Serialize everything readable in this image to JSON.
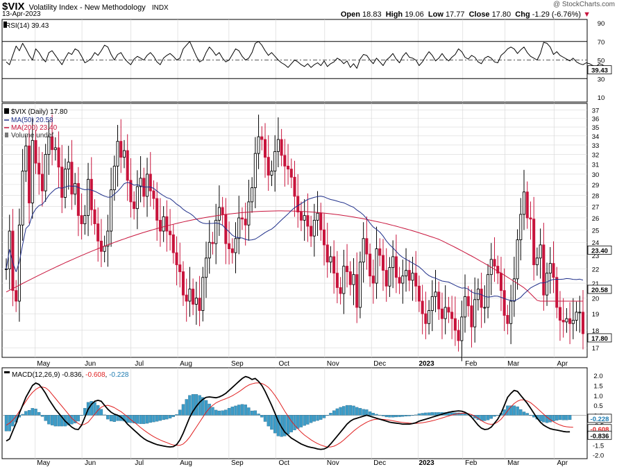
{
  "header": {
    "symbol": "$VIX",
    "name": "Volatility Index - New Methodology",
    "exchange": "INDX",
    "date": "13-Apr-2023",
    "watermark": "@ StockCharts.com",
    "open_label": "Open",
    "open": "18.83",
    "high_label": "High",
    "high": "19.06",
    "low_label": "Low",
    "low": "17.77",
    "close_label": "Close",
    "close": "17.80",
    "chg_label": "Chg",
    "chg": "-1.29 (-6.76%)",
    "chg_arrow": "down"
  },
  "colors": {
    "up": "#000000",
    "down": "#c8143c",
    "ma50": "#1f2f8a",
    "ma200": "#c8143c",
    "macd": "#000000",
    "signal": "#e02020",
    "hist": "#3c9cc8",
    "grid": "#d8d8d8"
  },
  "months": [
    "May",
    "Jun",
    "Jul",
    "Aug",
    "Sep",
    "Oct",
    "Nov",
    "Dec",
    "2023",
    "Feb",
    "Mar",
    "Apr"
  ],
  "chart_data": [
    {
      "type": "line",
      "panel": "RSI",
      "title": "RSI(14) 39.43",
      "last_value": "39.43",
      "levels": [
        70,
        30
      ],
      "dash_level": 50,
      "y_ticks": [
        "90",
        "70",
        "50",
        "30",
        "10"
      ],
      "ylim": [
        10,
        90
      ],
      "values": [
        48,
        45,
        55,
        65,
        60,
        68,
        62,
        55,
        50,
        62,
        58,
        52,
        48,
        58,
        60,
        55,
        50,
        45,
        52,
        58,
        56,
        62,
        60,
        54,
        47,
        49,
        52,
        58,
        55,
        60,
        66,
        64,
        56,
        50,
        56,
        58,
        52,
        48,
        45,
        51,
        54,
        52,
        50,
        55,
        58,
        54,
        48,
        45,
        52,
        55,
        57,
        54,
        50,
        52,
        62,
        66,
        70,
        62,
        54,
        48,
        50,
        58,
        64,
        60,
        55,
        58,
        52,
        48,
        50,
        56,
        62,
        60,
        54,
        50,
        52,
        58,
        68,
        70,
        66,
        60,
        55,
        58,
        54,
        50,
        47,
        45,
        42,
        46,
        50,
        48,
        45,
        43,
        46,
        42,
        45,
        47,
        44,
        49,
        43,
        46,
        48,
        52,
        50,
        46,
        49,
        42,
        46,
        41,
        51,
        56,
        55,
        50,
        46,
        52,
        48,
        44,
        50,
        53,
        57,
        51,
        47,
        54,
        58,
        53,
        52,
        50,
        44,
        48,
        54,
        59,
        55,
        49,
        52,
        57,
        52,
        49,
        53,
        56,
        62,
        59,
        53,
        51,
        55,
        53,
        48,
        46,
        52,
        54,
        52,
        48,
        47,
        55,
        58,
        62,
        64,
        62,
        57,
        61,
        64,
        58,
        54,
        52,
        50,
        57,
        69,
        68,
        64,
        56,
        59,
        55,
        53,
        51,
        49,
        52,
        48,
        46,
        45,
        47,
        46,
        44,
        43,
        46,
        45,
        40,
        39
      ]
    },
    {
      "type": "candlestick",
      "panel": "Price",
      "title": "$VIX (Daily) 17.80",
      "legend": [
        "$VIX (Daily) 17.80",
        "MA(50) 20.58",
        "MA(200) 23.40",
        "Volume undef"
      ],
      "last_close": "17.80",
      "ma50_value": "20.58",
      "ma200_value": "23.40",
      "y_ticks": [
        "37",
        "36",
        "35",
        "34",
        "33",
        "32",
        "31",
        "30",
        "29",
        "28",
        "27",
        "26",
        "25",
        "24",
        "23",
        "22",
        "21",
        "20",
        "19",
        "18",
        "17"
      ],
      "ylim": [
        16.7,
        37.3
      ],
      "log_scale": true,
      "close": [
        22.0,
        24.9,
        20.5,
        19.8,
        25.4,
        30.3,
        32.9,
        27.3,
        33.5,
        31.1,
        30.0,
        28.4,
        32.0,
        33.9,
        32.5,
        32.7,
        30.7,
        27.8,
        30.5,
        31.2,
        28.1,
        29.1,
        26.2,
        25.5,
        26.2,
        29.5,
        26.7,
        25.5,
        24.1,
        23.3,
        23.7,
        24.9,
        28.5,
        30.8,
        33.4,
        31.7,
        32.4,
        29.4,
        27.4,
        26.8,
        28.8,
        29.6,
        27.9,
        30.0,
        28.4,
        27.7,
        25.8,
        24.9,
        26.1,
        24.9,
        24.6,
        23.2,
        22.3,
        21.8,
        20.2,
        19.8,
        20.6,
        19.6,
        20.0,
        19.2,
        21.4,
        22.8,
        24.0,
        23.9,
        25.8,
        26.9,
        26.3,
        23.9,
        23.5,
        23.2,
        24.3,
        26.0,
        25.9,
        25.4,
        27.4,
        28.7,
        32.1,
        33.9,
        33.6,
        31.7,
        29.9,
        30.3,
        32.3,
        33.6,
        31.9,
        30.8,
        30.5,
        29.7,
        27.9,
        26.5,
        25.8,
        26.2,
        25.3,
        24.5,
        25.8,
        26.4,
        25.0,
        23.8,
        22.5,
        22.9,
        21.7,
        20.7,
        20.3,
        22.2,
        21.8,
        20.9,
        21.6,
        19.4,
        22.5,
        24.3,
        23.1,
        21.5,
        21.0,
        23.5,
        23.0,
        21.9,
        20.8,
        22.1,
        22.9,
        21.4,
        21.0,
        21.5,
        21.9,
        21.2,
        21.7,
        20.8,
        19.8,
        19.0,
        18.4,
        19.2,
        20.1,
        20.4,
        19.3,
        18.7,
        19.4,
        19.1,
        18.7,
        18.0,
        17.4,
        18.8,
        20.1,
        19.5,
        18.2,
        19.9,
        20.6,
        19.4,
        19.4,
        21.6,
        22.7,
        22.2,
        21.7,
        20.5,
        18.9,
        18.4,
        19.8,
        21.3,
        24.2,
        26.3,
        28.3,
        26.0,
        25.9,
        22.3,
        22.8,
        23.8,
        20.2,
        21.7,
        22.4,
        21.4,
        19.4,
        18.6,
        18.5,
        18.7,
        18.4,
        18.6,
        19.1,
        19.1,
        17.8
      ]
    },
    {
      "type": "line",
      "panel": "MACD",
      "title": "MACD(12,26,9)",
      "title_values": [
        "-0.836",
        "-0.608",
        "-0.228"
      ],
      "last_values": {
        "macd": "-0.836",
        "signal": "-0.608",
        "hist": "-0.228"
      },
      "y_ticks": [
        "2.0",
        "1.5",
        "1.0",
        "0.5",
        "0.0",
        "-0.5",
        "-1.0",
        "-1.5",
        "-2.0"
      ],
      "ylim": [
        -2.05,
        2.25
      ],
      "macd": [
        -1.3,
        -1.2,
        -0.8,
        -0.4,
        0.1,
        0.5,
        0.9,
        1.2,
        1.5,
        1.62,
        1.55,
        1.35,
        1.1,
        0.8,
        0.55,
        0.3,
        0.1,
        -0.1,
        -0.3,
        -0.45,
        -0.6,
        -0.7,
        -0.72,
        -0.5,
        -0.1,
        0.3,
        0.55,
        0.7,
        0.75,
        0.7,
        0.5,
        0.3,
        0.15,
        0.05,
        0.0,
        -0.1,
        -0.25,
        -0.45,
        -0.6,
        -0.75,
        -0.9,
        -1.05,
        -1.18,
        -1.28,
        -1.35,
        -1.42,
        -1.48,
        -1.52,
        -1.55,
        -1.58,
        -1.6,
        -1.58,
        -1.48,
        -1.25,
        -0.9,
        -0.5,
        -0.1,
        0.2,
        0.45,
        0.65,
        0.8,
        0.9,
        0.92,
        0.9,
        0.88,
        0.92,
        1.0,
        1.1,
        1.25,
        1.4,
        1.55,
        1.7,
        1.85,
        1.95,
        1.9,
        1.8,
        1.85,
        1.7,
        1.5,
        1.2,
        0.85,
        0.5,
        0.1,
        -0.3,
        -0.6,
        -0.85,
        -1.0,
        -1.15,
        -1.25,
        -1.35,
        -1.45,
        -1.52,
        -1.58,
        -1.62,
        -1.65,
        -1.7,
        -1.72,
        -1.7,
        -1.62,
        -1.45,
        -1.25,
        -1.05,
        -0.85,
        -0.65,
        -0.45,
        -0.3,
        -0.2,
        -0.15,
        -0.1,
        -0.05,
        0.0,
        -0.05,
        -0.1,
        -0.15,
        -0.2,
        -0.25,
        -0.3,
        -0.35,
        -0.38,
        -0.4,
        -0.42,
        -0.45,
        -0.45,
        -0.45,
        -0.42,
        -0.38,
        -0.3,
        -0.25,
        -0.2,
        -0.15,
        -0.1,
        -0.05,
        0.0,
        0.05,
        0.1,
        0.15,
        0.18,
        0.2,
        0.22,
        0.2,
        0.15,
        0.05,
        -0.1,
        -0.3,
        -0.5,
        -0.65,
        -0.72,
        -0.7,
        -0.6,
        -0.4,
        -0.2,
        0.1,
        0.5,
        0.9,
        1.1,
        1.25,
        1.2,
        1.0,
        0.8,
        0.6,
        0.35,
        0.1,
        -0.15,
        -0.35,
        -0.5,
        -0.6,
        -0.68,
        -0.72,
        -0.75,
        -0.78,
        -0.82,
        -0.84,
        -0.836
      ],
      "signal": [
        -0.5,
        -0.4,
        -0.25,
        -0.05,
        0.2,
        0.45,
        0.7,
        0.95,
        1.15,
        1.3,
        1.4,
        1.42,
        1.38,
        1.25,
        1.05,
        0.85,
        0.65,
        0.45,
        0.25,
        0.05,
        -0.15,
        -0.3,
        -0.42,
        -0.5,
        -0.45,
        -0.35,
        -0.15,
        0.05,
        0.25,
        0.4,
        0.48,
        0.5,
        0.45,
        0.38,
        0.28,
        0.18,
        0.05,
        -0.08,
        -0.22,
        -0.35,
        -0.48,
        -0.62,
        -0.75,
        -0.87,
        -0.98,
        -1.08,
        -1.17,
        -1.25,
        -1.32,
        -1.38,
        -1.45,
        -1.5,
        -1.52,
        -1.52,
        -1.45,
        -1.3,
        -1.1,
        -0.85,
        -0.6,
        -0.35,
        -0.1,
        0.15,
        0.35,
        0.5,
        0.62,
        0.7,
        0.77,
        0.83,
        0.9,
        0.98,
        1.08,
        1.18,
        1.3,
        1.42,
        1.52,
        1.58,
        1.62,
        1.63,
        1.6,
        1.52,
        1.4,
        1.22,
        1.0,
        0.75,
        0.48,
        0.2,
        -0.05,
        -0.3,
        -0.5,
        -0.68,
        -0.85,
        -1.0,
        -1.12,
        -1.24,
        -1.34,
        -1.43,
        -1.5,
        -1.56,
        -1.6,
        -1.6,
        -1.56,
        -1.48,
        -1.38,
        -1.25,
        -1.1,
        -0.95,
        -0.8,
        -0.67,
        -0.55,
        -0.45,
        -0.35,
        -0.28,
        -0.23,
        -0.2,
        -0.2,
        -0.21,
        -0.23,
        -0.25,
        -0.28,
        -0.31,
        -0.34,
        -0.36,
        -0.38,
        -0.4,
        -0.41,
        -0.41,
        -0.4,
        -0.38,
        -0.35,
        -0.32,
        -0.28,
        -0.24,
        -0.19,
        -0.14,
        -0.09,
        -0.04,
        0.01,
        0.05,
        0.08,
        0.1,
        0.1,
        0.08,
        0.03,
        -0.05,
        -0.15,
        -0.27,
        -0.37,
        -0.44,
        -0.46,
        -0.43,
        -0.34,
        -0.2,
        0.0,
        0.22,
        0.42,
        0.59,
        0.71,
        0.77,
        0.77,
        0.72,
        0.63,
        0.5,
        0.35,
        0.2,
        0.05,
        -0.1,
        -0.22,
        -0.33,
        -0.42,
        -0.49,
        -0.55,
        -0.58,
        -0.6,
        -0.608
      ],
      "hist": [
        -0.8,
        -0.8,
        -0.55,
        -0.35,
        -0.1,
        0.05,
        0.2,
        0.25,
        0.35,
        0.32,
        0.15,
        -0.07,
        -0.28,
        -0.45,
        -0.5,
        -0.55,
        -0.55,
        -0.55,
        -0.55,
        -0.5,
        -0.45,
        -0.4,
        -0.3,
        0.0,
        0.35,
        0.65,
        0.7,
        0.65,
        0.5,
        0.3,
        0.02,
        -0.2,
        -0.3,
        -0.33,
        -0.28,
        -0.28,
        -0.3,
        -0.37,
        -0.38,
        -0.4,
        -0.42,
        -0.43,
        -0.43,
        -0.41,
        -0.37,
        -0.34,
        -0.31,
        -0.27,
        -0.23,
        -0.2,
        -0.15,
        -0.08,
        0.04,
        0.27,
        0.55,
        0.8,
        1.0,
        1.05,
        1.05,
        1.0,
        0.9,
        0.75,
        0.57,
        0.4,
        0.26,
        0.22,
        0.23,
        0.27,
        0.35,
        0.42,
        0.47,
        0.52,
        0.55,
        0.53,
        0.38,
        0.22,
        0.23,
        0.07,
        -0.1,
        -0.32,
        -0.55,
        -0.72,
        -0.9,
        -1.05,
        -1.08,
        -1.05,
        -0.95,
        -0.85,
        -0.75,
        -0.67,
        -0.6,
        -0.52,
        -0.46,
        -0.38,
        -0.31,
        -0.27,
        -0.22,
        -0.14,
        -0.02,
        0.11,
        0.23,
        0.33,
        0.4,
        0.45,
        0.5,
        0.5,
        0.47,
        0.4,
        0.35,
        0.3,
        0.28,
        0.18,
        0.11,
        0.05,
        0.01,
        -0.04,
        -0.09,
        -0.1,
        -0.1,
        -0.09,
        -0.08,
        -0.07,
        -0.05,
        -0.04,
        -0.02,
        0.02,
        0.08,
        0.1,
        0.12,
        0.13,
        0.14,
        0.14,
        0.14,
        0.14,
        0.14,
        0.14,
        0.13,
        0.12,
        0.12,
        0.1,
        0.07,
        0.02,
        -0.05,
        -0.15,
        -0.23,
        -0.28,
        -0.28,
        -0.24,
        -0.17,
        -0.06,
        0.0,
        0.1,
        0.28,
        0.48,
        0.48,
        0.48,
        0.43,
        0.29,
        0.17,
        0.1,
        0.0,
        -0.1,
        -0.2,
        -0.3,
        -0.35,
        -0.38,
        -0.35,
        -0.3,
        -0.26,
        -0.23,
        -0.24,
        -0.24,
        -0.228
      ]
    }
  ]
}
